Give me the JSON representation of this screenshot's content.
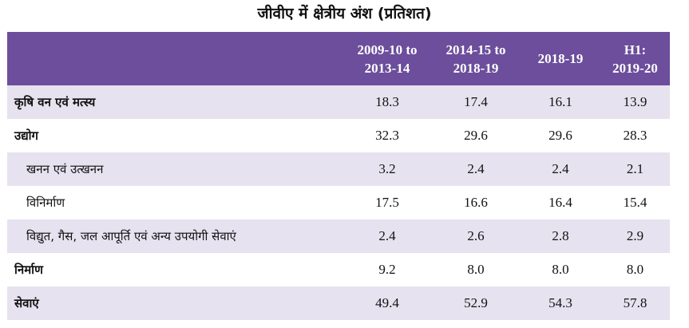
{
  "title": "जीवीए में क्षेत्रीय अंश (प्रतिशत)",
  "table": {
    "headers": [
      "",
      "2009-10 to\n2013-14",
      "2014-15 to\n2018-19",
      "2018-19",
      "H1:\n2019-20"
    ],
    "header_color": "#6c4e9c",
    "stripe_color": "#e6e2ef",
    "rows": [
      {
        "label": "कृषि वन एवं मत्स्य",
        "values": [
          "18.3",
          "17.4",
          "16.1",
          "13.9"
        ]
      },
      {
        "label": "उद्योग",
        "values": [
          "32.3",
          "29.6",
          "29.6",
          "28.3"
        ]
      },
      {
        "label": "खनन एवं उत्खनन",
        "values": [
          "3.2",
          "2.4",
          "2.4",
          "2.1"
        ]
      },
      {
        "label": "विनिर्माण",
        "values": [
          "17.5",
          "16.6",
          "16.4",
          "15.4"
        ]
      },
      {
        "label": "विद्युत, गैस, जल आपूर्ति एवं अन्य उपयोगी सेवाएं",
        "values": [
          "2.4",
          "2.6",
          "2.8",
          "2.9"
        ]
      },
      {
        "label": "निर्माण",
        "values": [
          "9.2",
          "8.0",
          "8.0",
          "8.0"
        ]
      },
      {
        "label": "सेवाएं",
        "values": [
          "49.4",
          "52.9",
          "54.3",
          "57.8"
        ]
      }
    ]
  }
}
